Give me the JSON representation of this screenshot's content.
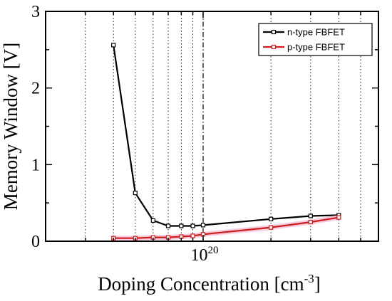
{
  "chart_data": {
    "type": "line",
    "xscale": "log",
    "xlim": [
      2e+19,
      6e+20
    ],
    "ylim": [
      0,
      3
    ],
    "xlabel": "Doping Concentration [cm",
    "xlabel_sup": "-3",
    "xlabel_end": "]",
    "ylabel": "Memory Window [V]",
    "x_tick_labels": [
      {
        "base": "10",
        "exp": "20",
        "value": 1e+20
      }
    ],
    "y_ticks": [
      0,
      1,
      2,
      3
    ],
    "y_tick_labels": [
      "0",
      "1",
      "2",
      "3"
    ],
    "grid": "vertical dotted at minor log ticks",
    "legend_position": "top-right",
    "series": [
      {
        "name": "n-type FBFET",
        "color": "#000000",
        "marker": "open-square",
        "x": [
          4e+19,
          5e+19,
          6e+19,
          7e+19,
          8e+19,
          9e+19,
          1e+20,
          2e+20,
          3e+20,
          4e+20
        ],
        "y": [
          2.56,
          0.63,
          0.27,
          0.2,
          0.2,
          0.2,
          0.21,
          0.29,
          0.33,
          0.34
        ]
      },
      {
        "name": "p-type FBFET",
        "color": "#cc1e1e",
        "marker": "open-square",
        "x": [
          4e+19,
          5e+19,
          6e+19,
          7e+19,
          8e+19,
          9e+19,
          1e+20,
          2e+20,
          3e+20,
          4e+20
        ],
        "y": [
          0.04,
          0.04,
          0.05,
          0.05,
          0.06,
          0.07,
          0.09,
          0.18,
          0.25,
          0.31
        ]
      }
    ]
  }
}
